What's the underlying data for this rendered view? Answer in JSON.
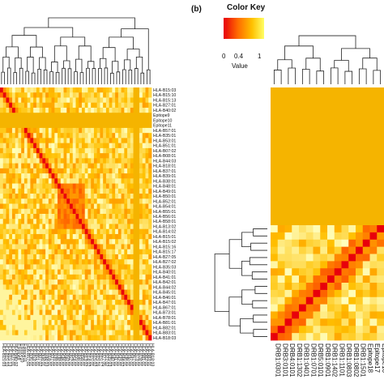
{
  "panel_b_tag": "(b)",
  "color_key": {
    "title": "Color Key",
    "ticks": [
      "0",
      "0.4",
      "1"
    ],
    "xlabel": "Value",
    "colors": [
      "#e8000b",
      "#ff6a00",
      "#ffc000",
      "#ffff66"
    ]
  },
  "chart_data": [
    {
      "type": "heatmap",
      "panel": "a",
      "row_labels": [
        "HLA-B15:03",
        "HLA-B15:10",
        "HLA-B15:13",
        "HLA-B27:01",
        "HLA-B40:02",
        "Epitope9",
        "Epitope10",
        "Epitope11",
        "HLA-B57:01",
        "HLA-B35:01",
        "HLA-B53:01",
        "HLA-B51:01",
        "HLA-B07:02",
        "HLA-B08:01",
        "HLA-B44:03",
        "HLA-B18:01",
        "HLA-B37:01",
        "HLA-B39:01",
        "HLA-B38:01",
        "HLA-B48:01",
        "HLA-B49:01",
        "HLA-B50:01",
        "HLA-B52:01",
        "HLA-B54:01",
        "HLA-B55:01",
        "HLA-B56:01",
        "HLA-B58:01",
        "HLA-B13:02",
        "HLA-B14:02",
        "HLA-B15:01",
        "HLA-B15:02",
        "HLA-B15:16",
        "HLA-B15:17",
        "HLA-B27:05",
        "HLA-B27:02",
        "HLA-B35:03",
        "HLA-B40:01",
        "HLA-B41:01",
        "HLA-B42:01",
        "HLA-B44:02",
        "HLA-B45:01",
        "HLA-B46:01",
        "HLA-B47:01",
        "HLA-B67:01",
        "HLA-B73:01",
        "HLA-B78:01",
        "HLA-B81:01",
        "HLA-B82:01",
        "HLA-B83:01",
        "HLA-B18:03"
      ],
      "value_range": [
        0,
        1
      ]
    },
    {
      "type": "heatmap",
      "panel": "b",
      "col_labels": [
        "DRB1:0301",
        "DRB3:0101",
        "DRB4:0101",
        "DRB1:1302",
        "DRB1:0401",
        "DRB1:0701",
        "DRB5:0101",
        "DRB1:0901",
        "DRB1:1402",
        "DRB1:1101",
        "DRB1:0803",
        "DRB1:0802",
        "DRB1:1501",
        "Epitope18",
        "Epitope17",
        "Epitope16"
      ],
      "value_range": [
        0,
        1
      ]
    }
  ]
}
